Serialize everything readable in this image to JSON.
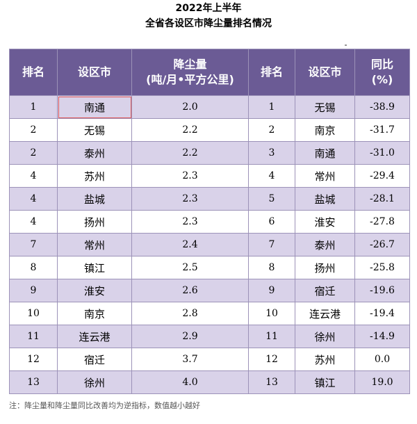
{
  "title": "2022年上半年",
  "subtitle": "全省各设区市降尘量排名情况",
  "headers": {
    "rank": "排名",
    "city": "设区市",
    "dust_line1": "降尘量",
    "dust_line2": "(吨/月•平方公里)",
    "rank2": "排名",
    "city2": "设区市",
    "yoy_line1": "同比",
    "yoy_line2": "(%)"
  },
  "rows": [
    {
      "rank": "1",
      "city": "南通",
      "dust": "2.0",
      "rank2": "1",
      "city2": "无锡",
      "yoy": "-38.9"
    },
    {
      "rank": "2",
      "city": "无锡",
      "dust": "2.2",
      "rank2": "2",
      "city2": "南京",
      "yoy": "-31.7"
    },
    {
      "rank": "2",
      "city": "泰州",
      "dust": "2.2",
      "rank2": "3",
      "city2": "南通",
      "yoy": "-31.0"
    },
    {
      "rank": "4",
      "city": "苏州",
      "dust": "2.3",
      "rank2": "4",
      "city2": "常州",
      "yoy": "-29.4"
    },
    {
      "rank": "4",
      "city": "盐城",
      "dust": "2.3",
      "rank2": "5",
      "city2": "盐城",
      "yoy": "-28.1"
    },
    {
      "rank": "4",
      "city": "扬州",
      "dust": "2.3",
      "rank2": "6",
      "city2": "淮安",
      "yoy": "-27.8"
    },
    {
      "rank": "7",
      "city": "常州",
      "dust": "2.4",
      "rank2": "7",
      "city2": "泰州",
      "yoy": "-26.7"
    },
    {
      "rank": "8",
      "city": "镇江",
      "dust": "2.5",
      "rank2": "8",
      "city2": "扬州",
      "yoy": "-25.8"
    },
    {
      "rank": "9",
      "city": "淮安",
      "dust": "2.6",
      "rank2": "9",
      "city2": "宿迁",
      "yoy": "-19.6"
    },
    {
      "rank": "10",
      "city": "南京",
      "dust": "2.8",
      "rank2": "10",
      "city2": "连云港",
      "yoy": "-19.4"
    },
    {
      "rank": "11",
      "city": "连云港",
      "dust": "2.9",
      "rank2": "11",
      "city2": "徐州",
      "yoy": "-14.9"
    },
    {
      "rank": "12",
      "city": "宿迁",
      "dust": "3.7",
      "rank2": "12",
      "city2": "苏州",
      "yoy": "0.0"
    },
    {
      "rank": "13",
      "city": "徐州",
      "dust": "4.0",
      "rank2": "13",
      "city2": "镇江",
      "yoy": "19.0"
    }
  ],
  "note": "注：降尘量和降尘量同比改善均为逆指标，数值越小越好",
  "colors": {
    "header": "#6b5b95",
    "band": "#d9d2e9",
    "highlight": "#e05a5a"
  }
}
